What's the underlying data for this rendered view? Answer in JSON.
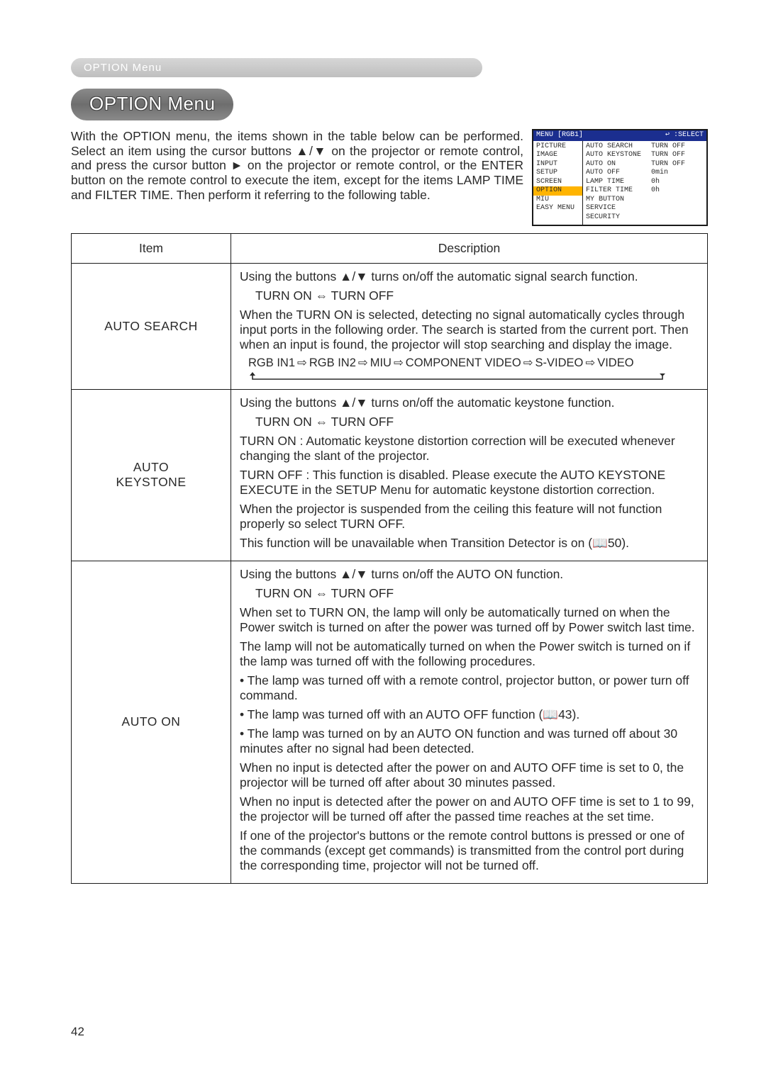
{
  "page_number": "42",
  "breadcrumb": "OPTION Menu",
  "heading": "OPTION Menu",
  "intro": "With the OPTION menu, the items shown in the table below can be performed.\nSelect an item using the cursor buttons ▲/▼ on the projector or remote control, and press the cursor button ► on the projector or remote control, or the ENTER button on the remote control to execute the item, except for the items LAMP TIME and FILTER TIME. Then perform it referring to the following table.",
  "osd": {
    "title_left": "MENU [RGB1]",
    "title_right_icon": "↩",
    "title_right": ":SELECT",
    "left_items": [
      "PICTURE",
      "IMAGE",
      "INPUT",
      "SETUP",
      "SCREEN",
      "OPTION",
      "MIU",
      "EASY MENU"
    ],
    "selected_left": "OPTION",
    "right_rows": [
      {
        "k": "AUTO SEARCH",
        "v": "TURN OFF"
      },
      {
        "k": "AUTO KEYSTONE",
        "v": "TURN OFF"
      },
      {
        "k": "AUTO ON",
        "v": "TURN OFF"
      },
      {
        "k": "AUTO OFF",
        "v": "0min"
      },
      {
        "k": "LAMP TIME",
        "v": "0h"
      },
      {
        "k": "FILTER TIME",
        "v": "0h"
      },
      {
        "k": "MY BUTTON",
        "v": ""
      },
      {
        "k": "SERVICE",
        "v": ""
      },
      {
        "k": "SECURITY",
        "v": ""
      }
    ]
  },
  "table": {
    "head_item": "Item",
    "head_desc": "Description",
    "rows": [
      {
        "item": "AUTO SEARCH",
        "lead": "Using the buttons ▲/▼ turns on/off the automatic signal search function.",
        "toggle": "TURN ON ⇔ TURN OFF",
        "body": [
          "When the TURN ON is selected, detecting no signal automatically cycles through input ports in the following order. The search is started from the current port. Then when an input is found, the projector will stop searching and display the image."
        ],
        "flow_items": [
          "RGB IN1",
          "RGB IN2",
          "MIU",
          "COMPONENT VIDEO",
          "S-VIDEO",
          "VIDEO"
        ]
      },
      {
        "item": "AUTO KEYSTONE",
        "lead": "Using the buttons ▲/▼ turns on/off the automatic keystone function.",
        "toggle": "TURN ON ⇔ TURN OFF",
        "body": [
          "TURN ON : Automatic keystone distortion correction will be executed whenever changing the slant of the projector.",
          "TURN OFF : This function is disabled. Please execute the AUTO KEYSTONE EXECUTE in the SETUP Menu for automatic keystone distortion correction.",
          "When the projector is suspended from the ceiling this feature will not function properly so select TURN OFF.",
          "This function will be unavailable when Transition Detector is on (📖50)."
        ]
      },
      {
        "item": "AUTO ON",
        "lead": "Using the buttons ▲/▼ turns on/off the AUTO ON function.",
        "toggle": "TURN ON ⇔ TURN OFF",
        "body": [
          "When set to TURN ON, the lamp will only be automatically turned on when the Power switch is turned on after the power was turned off by Power switch last time.",
          "The lamp will not be automatically turned on when the Power switch is turned on if the lamp was turned off with the following procedures.",
          "• The lamp was turned off with a remote control, projector button, or power turn off command.",
          "• The lamp was turned off with an AUTO OFF function (📖43).",
          "• The lamp was turned on by an AUTO ON function and was turned off about 30 minutes after no signal had been detected.",
          "When no input is detected after the power on and AUTO OFF time is set to 0, the projector will be turned off after about 30 minutes passed.",
          "When no input is detected after the power on and AUTO OFF time is set to 1 to 99, the projector will be turned off after the passed time reaches at the set time.",
          "If one of the projector's buttons or the remote control buttons is pressed or one of the commands (except get commands) is transmitted from the control port during the corresponding time, projector will not be turned off."
        ]
      }
    ]
  }
}
